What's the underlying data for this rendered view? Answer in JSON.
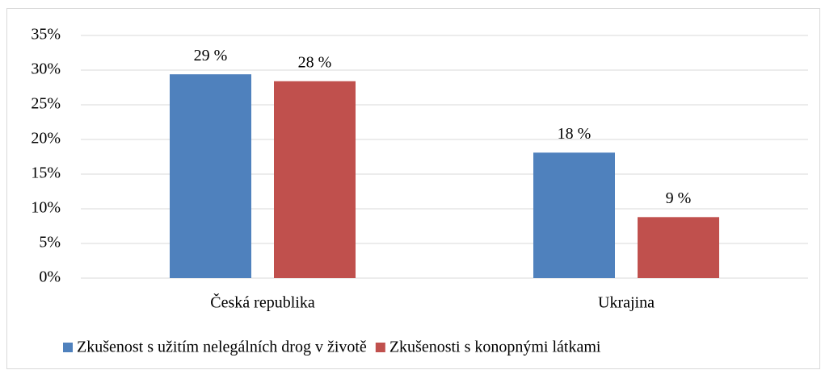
{
  "chart_data": {
    "type": "bar",
    "categories": [
      "Česká republika",
      "Ukrajina"
    ],
    "series": [
      {
        "name": "Zkušenost s užitím nelegálních drog v životě",
        "color": "#4f81bd",
        "values": [
          29.4,
          18.1
        ],
        "value_labels": [
          "29 %",
          "18 %"
        ]
      },
      {
        "name": "Zkušenosti s konopnými látkami",
        "color": "#c0504d",
        "values": [
          28.4,
          8.8
        ],
        "value_labels": [
          "28 %",
          "9 %"
        ]
      }
    ],
    "ylim": [
      0,
      35
    ],
    "yticks": [
      {
        "value": 0,
        "label": "0%"
      },
      {
        "value": 5,
        "label": "5%"
      },
      {
        "value": 10,
        "label": "10%"
      },
      {
        "value": 15,
        "label": "15%"
      },
      {
        "value": 20,
        "label": "20%"
      },
      {
        "value": 25,
        "label": "25%"
      },
      {
        "value": 30,
        "label": "30%"
      },
      {
        "value": 35,
        "label": "35%"
      }
    ],
    "grid": true,
    "legend": "bottom"
  }
}
